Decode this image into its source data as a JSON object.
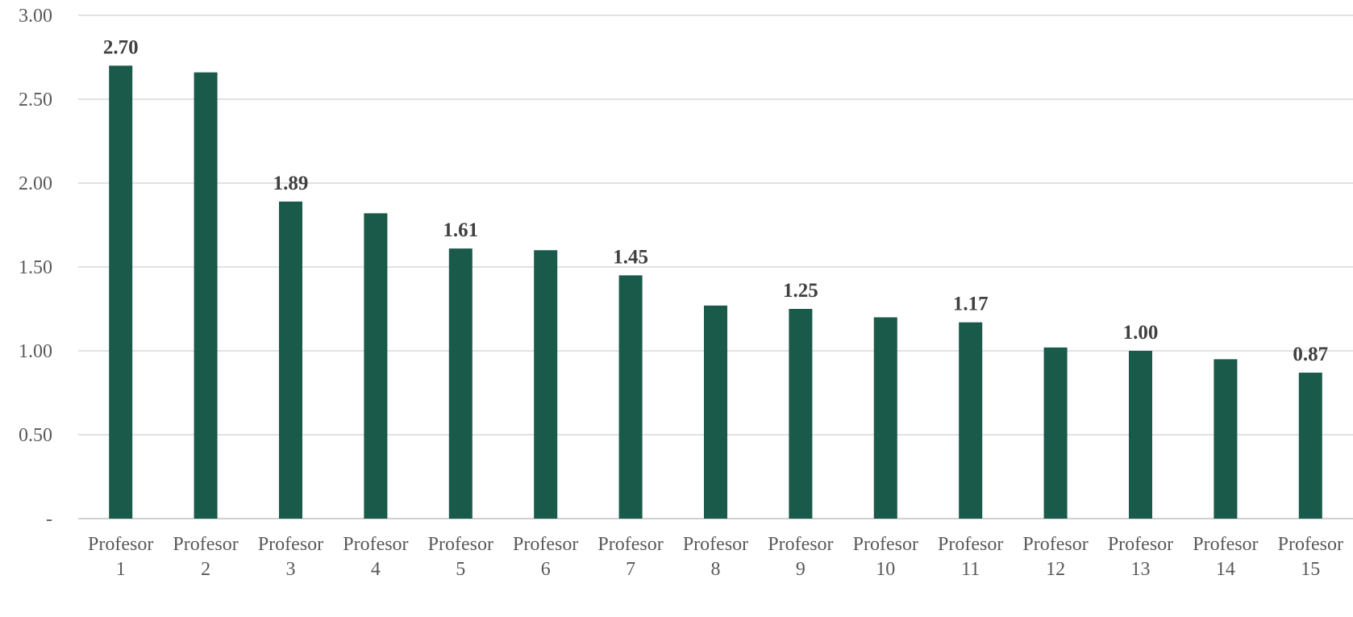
{
  "chart_data": {
    "type": "bar",
    "title": "",
    "xlabel": "",
    "ylabel": "",
    "ylim": [
      0,
      3.0
    ],
    "yticks": [
      {
        "value": 0,
        "label": "-"
      },
      {
        "value": 0.5,
        "label": "0.50"
      },
      {
        "value": 1.0,
        "label": "1.00"
      },
      {
        "value": 1.5,
        "label": "1.50"
      },
      {
        "value": 2.0,
        "label": "2.00"
      },
      {
        "value": 2.5,
        "label": "2.50"
      },
      {
        "value": 3.0,
        "label": "3.00"
      }
    ],
    "grid": true,
    "legend": "none",
    "bar_color": "#1a5a4b",
    "categories": [
      [
        "Profesor",
        "1"
      ],
      [
        "Profesor",
        "2"
      ],
      [
        "Profesor",
        "3"
      ],
      [
        "Profesor",
        "4"
      ],
      [
        "Profesor",
        "5"
      ],
      [
        "Profesor",
        "6"
      ],
      [
        "Profesor",
        "7"
      ],
      [
        "Profesor",
        "8"
      ],
      [
        "Profesor",
        "9"
      ],
      [
        "Profesor",
        "10"
      ],
      [
        "Profesor",
        "11"
      ],
      [
        "Profesor",
        "12"
      ],
      [
        "Profesor",
        "13"
      ],
      [
        "Profesor",
        "14"
      ],
      [
        "Profesor",
        "15"
      ]
    ],
    "values": [
      2.7,
      2.66,
      1.89,
      1.82,
      1.61,
      1.6,
      1.45,
      1.27,
      1.25,
      1.2,
      1.17,
      1.02,
      1.0,
      0.95,
      0.87
    ],
    "data_labels": [
      "2.70",
      "",
      "1.89",
      "",
      "1.61",
      "",
      "1.45",
      "",
      "1.25",
      "",
      "1.17",
      "",
      "1.00",
      "",
      "0.87"
    ]
  }
}
